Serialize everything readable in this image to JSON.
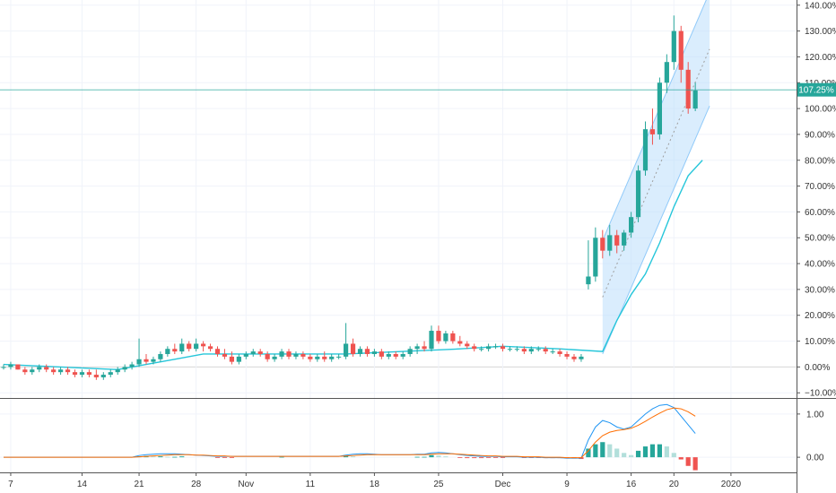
{
  "chart_data": {
    "type": "candlestick",
    "title": "",
    "xlabel": "",
    "ylabel": "",
    "y_unit": "%",
    "ylim": [
      -12,
      142
    ],
    "y_ticks": [
      "140.00%",
      "130.00%",
      "120.00%",
      "110.00%",
      "100.00%",
      "90.00%",
      "80.00%",
      "70.00%",
      "60.00%",
      "50.00%",
      "40.00%",
      "30.00%",
      "20.00%",
      "10.00%",
      "0.00%",
      "−10.00%"
    ],
    "x_ticks": [
      "7",
      "14",
      "21",
      "28",
      "Nov",
      "11",
      "18",
      "25",
      "Dec",
      "9",
      "16",
      "20",
      "2020"
    ],
    "last_value_label": "107.25%",
    "last_value": 107.25,
    "grid": true,
    "legend": "none",
    "colors": {
      "up": "#26a69a",
      "down": "#ef5350",
      "ma_line": "#26c6da",
      "channel_fill": "#bbdefb",
      "channel_line": "#90caf9",
      "price_line": "#26a69a"
    },
    "ohlc": [
      [
        0,
        1,
        -1,
        0
      ],
      [
        0,
        2,
        -1,
        1
      ],
      [
        1,
        1,
        -1,
        -1
      ],
      [
        -1,
        0,
        -3,
        -2
      ],
      [
        -2,
        0,
        -3,
        -1
      ],
      [
        -1,
        1,
        -2,
        0
      ],
      [
        0,
        1,
        -2,
        -1
      ],
      [
        -1,
        0,
        -3,
        -2
      ],
      [
        -2,
        0,
        -3,
        -1
      ],
      [
        -1,
        0,
        -3,
        -2
      ],
      [
        -2,
        -1,
        -4,
        -3
      ],
      [
        -3,
        -1,
        -4,
        -2
      ],
      [
        -2,
        -1,
        -4,
        -3
      ],
      [
        -3,
        -1,
        -5,
        -4
      ],
      [
        -4,
        -2,
        -5,
        -3
      ],
      [
        -3,
        -1,
        -4,
        -2
      ],
      [
        -2,
        0,
        -3,
        -1
      ],
      [
        -1,
        1,
        -2,
        0
      ],
      [
        0,
        2,
        -1,
        1
      ],
      [
        1,
        11,
        0,
        3
      ],
      [
        3,
        5,
        1,
        2
      ],
      [
        2,
        4,
        1,
        3
      ],
      [
        3,
        6,
        2,
        5
      ],
      [
        5,
        8,
        4,
        7
      ],
      [
        7,
        9,
        5,
        6
      ],
      [
        6,
        11,
        5,
        9
      ],
      [
        9,
        10,
        6,
        7
      ],
      [
        7,
        11,
        6,
        9
      ],
      [
        9,
        10,
        6,
        8
      ],
      [
        8,
        9,
        6,
        7
      ],
      [
        7,
        8,
        4,
        5
      ],
      [
        5,
        7,
        3,
        4
      ],
      [
        4,
        6,
        1,
        2
      ],
      [
        2,
        5,
        1,
        4
      ],
      [
        4,
        6,
        3,
        5
      ],
      [
        5,
        7,
        4,
        6
      ],
      [
        6,
        7,
        4,
        5
      ],
      [
        5,
        6,
        2,
        3
      ],
      [
        3,
        5,
        2,
        4
      ],
      [
        4,
        7,
        3,
        6
      ],
      [
        6,
        7,
        3,
        4
      ],
      [
        4,
        6,
        3,
        5
      ],
      [
        5,
        6,
        3,
        4
      ],
      [
        4,
        5,
        2,
        3
      ],
      [
        3,
        5,
        2,
        4
      ],
      [
        4,
        6,
        2,
        3
      ],
      [
        3,
        5,
        2,
        4
      ],
      [
        4,
        5,
        3,
        4
      ],
      [
        4,
        17,
        3,
        9
      ],
      [
        9,
        11,
        4,
        5
      ],
      [
        5,
        8,
        4,
        7
      ],
      [
        7,
        8,
        4,
        5
      ],
      [
        5,
        7,
        4,
        6
      ],
      [
        6,
        7,
        3,
        4
      ],
      [
        4,
        6,
        3,
        5
      ],
      [
        5,
        6,
        3,
        4
      ],
      [
        4,
        6,
        3,
        5
      ],
      [
        5,
        8,
        4,
        7
      ],
      [
        7,
        9,
        5,
        8
      ],
      [
        8,
        10,
        6,
        7
      ],
      [
        7,
        16,
        6,
        14
      ],
      [
        14,
        16,
        9,
        10
      ],
      [
        10,
        14,
        9,
        13
      ],
      [
        13,
        14,
        9,
        10
      ],
      [
        10,
        12,
        8,
        9
      ],
      [
        9,
        10,
        7,
        8
      ],
      [
        8,
        9,
        6,
        7
      ],
      [
        7,
        8,
        6,
        7
      ],
      [
        7,
        9,
        6,
        8
      ],
      [
        8,
        9,
        7,
        8
      ],
      [
        8,
        9,
        6,
        7
      ],
      [
        7,
        8,
        6,
        7
      ],
      [
        7,
        8,
        6,
        7
      ],
      [
        7,
        8,
        5,
        6
      ],
      [
        6,
        8,
        5,
        7
      ],
      [
        7,
        8,
        6,
        7
      ],
      [
        7,
        8,
        5,
        6
      ],
      [
        6,
        7,
        5,
        6
      ],
      [
        6,
        7,
        4,
        5
      ],
      [
        5,
        6,
        3,
        4
      ],
      [
        4,
        5,
        2,
        3
      ],
      [
        3,
        5,
        2,
        4
      ],
      [
        32,
        49,
        30,
        35
      ],
      [
        35,
        54,
        33,
        50
      ],
      [
        50,
        53,
        42,
        45
      ],
      [
        45,
        55,
        43,
        51
      ],
      [
        51,
        53,
        44,
        47
      ],
      [
        47,
        53,
        45,
        52
      ],
      [
        52,
        60,
        50,
        58
      ],
      [
        58,
        78,
        56,
        76
      ],
      [
        76,
        95,
        74,
        92
      ],
      [
        92,
        100,
        86,
        90
      ],
      [
        90,
        112,
        88,
        110
      ],
      [
        110,
        121,
        106,
        118
      ],
      [
        118,
        136,
        115,
        130
      ],
      [
        130,
        132,
        110,
        115
      ],
      [
        115,
        118,
        98,
        100
      ],
      [
        100,
        110,
        99,
        107
      ]
    ],
    "ma": [
      [
        0,
        1
      ],
      [
        8,
        0
      ],
      [
        16,
        -1
      ],
      [
        20,
        1
      ],
      [
        24,
        3
      ],
      [
        28,
        5
      ],
      [
        32,
        5
      ],
      [
        40,
        5
      ],
      [
        48,
        5
      ],
      [
        56,
        6
      ],
      [
        64,
        7
      ],
      [
        70,
        8
      ],
      [
        78,
        7
      ],
      [
        84,
        6
      ],
      [
        86,
        18
      ],
      [
        88,
        28
      ],
      [
        90,
        36
      ],
      [
        92,
        48
      ],
      [
        94,
        62
      ],
      [
        96,
        74
      ],
      [
        98,
        80
      ]
    ],
    "channel": {
      "start": [
        84,
        27
      ],
      "end": [
        99,
        123
      ],
      "upper_offset": 22,
      "lower_offset": -22
    },
    "macd": {
      "ylim": [
        -0.35,
        1.35
      ],
      "y_ticks": [
        "1.00",
        "0.00"
      ],
      "histogram": [
        0,
        0,
        0,
        0,
        0,
        0,
        0,
        0,
        0,
        0,
        0,
        0,
        0,
        0,
        0,
        0,
        0,
        0,
        0,
        0.02,
        0.03,
        0.02,
        0.02,
        0.01,
        0.01,
        0.02,
        0,
        0,
        0,
        0,
        -0.01,
        -0.01,
        -0.01,
        0,
        0,
        0,
        0,
        0,
        0,
        0.01,
        0,
        0,
        0,
        0,
        0,
        0,
        0,
        0,
        0.03,
        0.02,
        0,
        0,
        0,
        0,
        0,
        0,
        0,
        0,
        0.01,
        0.01,
        0.05,
        0.04,
        0.02,
        0,
        -0.01,
        -0.02,
        -0.02,
        -0.02,
        -0.01,
        -0.01,
        -0.01,
        0,
        0,
        -0.01,
        -0.01,
        -0.01,
        -0.02,
        -0.02,
        -0.02,
        -0.03,
        -0.03,
        -0.04,
        0.2,
        0.3,
        0.35,
        0.3,
        0.2,
        0.1,
        0.05,
        0.15,
        0.25,
        0.3,
        0.3,
        0.25,
        0.1,
        -0.05,
        -0.2,
        -0.3
      ],
      "macd_line": [
        0,
        0,
        0,
        0,
        0,
        0,
        0,
        0,
        0,
        0,
        0,
        0,
        0,
        0,
        0,
        0,
        0,
        0,
        0,
        0.04,
        0.06,
        0.07,
        0.08,
        0.08,
        0.08,
        0.07,
        0.06,
        0.05,
        0.04,
        0.03,
        0.02,
        0.02,
        0.02,
        0.02,
        0.02,
        0.02,
        0.02,
        0.02,
        0.02,
        0.02,
        0.02,
        0.02,
        0.02,
        0.02,
        0.02,
        0.02,
        0.02,
        0.02,
        0.05,
        0.07,
        0.08,
        0.08,
        0.07,
        0.06,
        0.06,
        0.06,
        0.06,
        0.06,
        0.07,
        0.07,
        0.1,
        0.11,
        0.1,
        0.08,
        0.06,
        0.04,
        0.03,
        0.02,
        0.02,
        0.02,
        0.01,
        0.01,
        0.01,
        0,
        0,
        0,
        -0.01,
        -0.01,
        -0.01,
        -0.02,
        -0.02,
        -0.02,
        0.4,
        0.7,
        0.85,
        0.8,
        0.7,
        0.65,
        0.7,
        0.85,
        1.0,
        1.12,
        1.2,
        1.22,
        1.15,
        0.95,
        0.75,
        0.55
      ],
      "signal_line": [
        0,
        0,
        0,
        0,
        0,
        0,
        0,
        0,
        0,
        0,
        0,
        0,
        0,
        0,
        0,
        0,
        0,
        0,
        0,
        0.01,
        0.02,
        0.03,
        0.04,
        0.05,
        0.06,
        0.06,
        0.06,
        0.05,
        0.05,
        0.04,
        0.03,
        0.03,
        0.02,
        0.02,
        0.02,
        0.02,
        0.02,
        0.02,
        0.02,
        0.02,
        0.02,
        0.02,
        0.02,
        0.02,
        0.02,
        0.02,
        0.02,
        0.02,
        0.03,
        0.04,
        0.05,
        0.06,
        0.06,
        0.06,
        0.06,
        0.06,
        0.06,
        0.06,
        0.06,
        0.06,
        0.07,
        0.08,
        0.08,
        0.08,
        0.07,
        0.06,
        0.05,
        0.04,
        0.03,
        0.03,
        0.02,
        0.02,
        0.02,
        0.01,
        0.01,
        0.01,
        0,
        0,
        0,
        -0.01,
        -0.01,
        -0.01,
        0.15,
        0.35,
        0.5,
        0.58,
        0.62,
        0.64,
        0.67,
        0.74,
        0.83,
        0.93,
        1.02,
        1.1,
        1.14,
        1.12,
        1.05,
        0.95
      ],
      "colors": {
        "hist_up": "#26a69a",
        "hist_up_light": "#b2dfdb",
        "hist_down": "#ef5350",
        "macd": "#2196f3",
        "signal": "#ff6d00"
      }
    }
  }
}
